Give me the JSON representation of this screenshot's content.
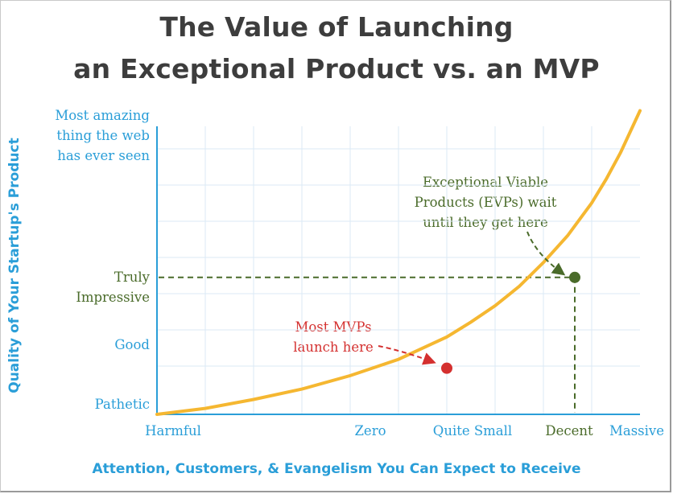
{
  "chart_data": {
    "type": "line",
    "title": "The Value of Launching",
    "title_line2": "an Exceptional Product vs. an MVP",
    "xlabel": "Attention, Customers, & Evangelism You Can Expect to Receive",
    "ylabel": "Quality of Your Startup's Product",
    "x_tick_labels": [
      {
        "label": "Harmful",
        "color": "#2a9ed8"
      },
      {
        "label": "Zero",
        "color": "#2a9ed8"
      },
      {
        "label": "Quite Small",
        "color": "#2a9ed8"
      },
      {
        "label": "Decent",
        "color": "#4a6b2a"
      },
      {
        "label": "Massive",
        "color": "#2a9ed8"
      }
    ],
    "y_tick_labels": [
      {
        "label": "Pathetic",
        "color": "#2a9ed8"
      },
      {
        "label": "Good",
        "color": "#2a9ed8"
      },
      {
        "label": "Truly\nImpressive",
        "color": "#4a6b2a"
      },
      {
        "label": "Most amazing\nthing the web\nhas ever seen",
        "color": "#2a9ed8"
      }
    ],
    "x_range": [
      0,
      10
    ],
    "y_range": [
      0,
      10
    ],
    "series": [
      {
        "color": "#f5b731",
        "x": [
          0,
          1,
          2,
          3,
          4,
          5,
          6,
          6.5,
          7,
          7.5,
          8,
          8.5,
          9,
          9.3,
          9.6,
          9.8,
          10
        ],
        "y": [
          0,
          0.2,
          0.5,
          0.85,
          1.3,
          1.85,
          2.6,
          3.1,
          3.65,
          4.3,
          5.1,
          6.0,
          7.1,
          7.9,
          8.8,
          9.5,
          10.2
        ]
      }
    ],
    "points": [
      {
        "name": "mvp",
        "x": 6.0,
        "y": 1.55,
        "color": "#d4302f"
      },
      {
        "name": "evp",
        "x": 8.65,
        "y": 4.6,
        "color": "#4a6b2a"
      }
    ],
    "annotations": [
      {
        "text": "Most MVPs\nlaunch here",
        "color": "#d4302f"
      },
      {
        "text": "Exceptional Viable\nProducts (EVPs) wait\nuntil they get here",
        "color": "#4a6b2a"
      }
    ],
    "grid": true,
    "grid_color": "#dbeaf6",
    "axis_color": "#2a9ed8",
    "guide_color": "#4a6b2a"
  }
}
